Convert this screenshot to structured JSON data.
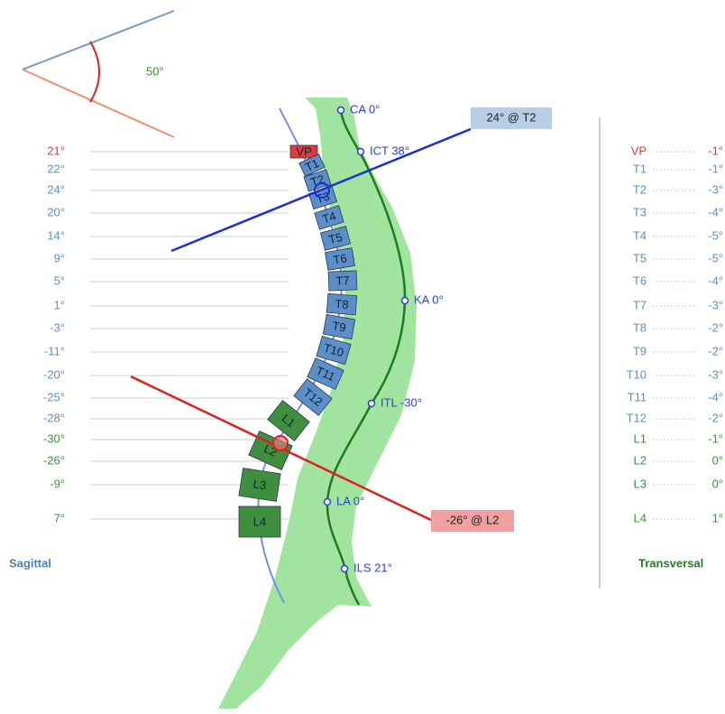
{
  "angle_label": "50°",
  "upper_measure": "24° @ T2",
  "lower_measure": "-26° @ L2",
  "sagittal_title": "Sagittal",
  "transversal_title": "Transversal",
  "vertebrae": [
    {
      "name": "VP",
      "sagittal": "21°",
      "transversal": "-1°",
      "color": "#e03a3a"
    },
    {
      "name": "T1",
      "sagittal": "22°",
      "transversal": "-1°",
      "color": "#5b8fc7"
    },
    {
      "name": "T2",
      "sagittal": "24°",
      "transversal": "-3°",
      "color": "#5b8fc7"
    },
    {
      "name": "T3",
      "sagittal": "20°",
      "transversal": "-4°",
      "color": "#5b8fc7"
    },
    {
      "name": "T4",
      "sagittal": "14°",
      "transversal": "-5°",
      "color": "#5b8fc7"
    },
    {
      "name": "T5",
      "sagittal": "9°",
      "transversal": "-5°",
      "color": "#5b8fc7"
    },
    {
      "name": "T6",
      "sagittal": "5°",
      "transversal": "-4°",
      "color": "#5b8fc7"
    },
    {
      "name": "T7",
      "sagittal": "1°",
      "transversal": "-3°",
      "color": "#5b8fc7"
    },
    {
      "name": "T8",
      "sagittal": "-3°",
      "transversal": "-2°",
      "color": "#5b8fc7"
    },
    {
      "name": "T9",
      "sagittal": "-11°",
      "transversal": "-2°",
      "color": "#5b8fc7"
    },
    {
      "name": "T10",
      "sagittal": "-20°",
      "transversal": "-3°",
      "color": "#5b8fc7"
    },
    {
      "name": "T11",
      "sagittal": "-25°",
      "transversal": "-4°",
      "color": "#5b8fc7"
    },
    {
      "name": "T12",
      "sagittal": "-28°",
      "transversal": "-2°",
      "color": "#5b8fc7"
    },
    {
      "name": "L1",
      "sagittal": "-30°",
      "transversal": "-1°",
      "color": "#3f8f3f"
    },
    {
      "name": "L2",
      "sagittal": "-26°",
      "transversal": "0°",
      "color": "#3f8f3f"
    },
    {
      "name": "L3",
      "sagittal": "-9°",
      "transversal": "0°",
      "color": "#3f8f3f"
    },
    {
      "name": "L4",
      "sagittal": "7°",
      "transversal": "1°",
      "color": "#3f8f3f"
    }
  ],
  "landmarks": [
    "CA 0°",
    "ICT 38°",
    "KA 0°",
    "ITL -30°",
    "LA 0°",
    "ILS 21°"
  ]
}
